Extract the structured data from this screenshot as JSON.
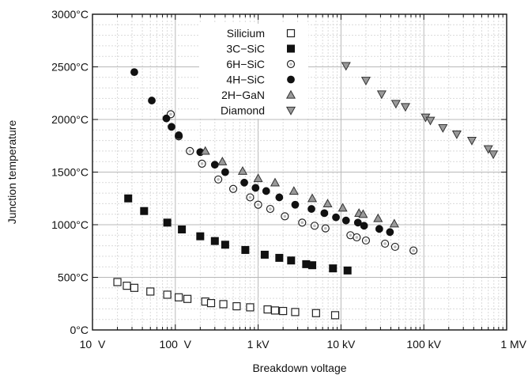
{
  "chart_data": {
    "type": "scatter",
    "xlabel": "Breakdown voltage",
    "ylabel": "Junction temperature",
    "x_scale": "log",
    "xlim": [
      10,
      1000000
    ],
    "ylim": [
      0,
      3000
    ],
    "grid": true,
    "legend_position": "top-center",
    "x_ticks": [
      {
        "value": 10,
        "label": "10  V"
      },
      {
        "value": 100,
        "label": "100  V"
      },
      {
        "value": 1000,
        "label": "1 kV"
      },
      {
        "value": 10000,
        "label": "10 kV"
      },
      {
        "value": 100000,
        "label": "100 kV"
      },
      {
        "value": 1000000,
        "label": "1 MV"
      }
    ],
    "y_ticks": [
      {
        "value": 0,
        "label": "0°C"
      },
      {
        "value": 500,
        "label": "500°C"
      },
      {
        "value": 1000,
        "label": "1000°C"
      },
      {
        "value": 1500,
        "label": "1500°C"
      },
      {
        "value": 2000,
        "label": "2000°C"
      },
      {
        "value": 2500,
        "label": "2500°C"
      },
      {
        "value": 3000,
        "label": "3000°C"
      }
    ],
    "series": [
      {
        "name": "Silicium",
        "marker": "square-open",
        "x": [
          20,
          26,
          32,
          50,
          80,
          110,
          140,
          230,
          270,
          380,
          550,
          800,
          1300,
          1600,
          2000,
          2800,
          5000,
          8500
        ],
        "y": [
          455,
          420,
          400,
          365,
          335,
          310,
          295,
          270,
          255,
          245,
          225,
          215,
          195,
          185,
          180,
          170,
          160,
          140
        ]
      },
      {
        "name": "3C−SiC",
        "marker": "square-filled",
        "x": [
          27,
          42,
          80,
          120,
          200,
          300,
          400,
          700,
          1200,
          1800,
          2500,
          3800,
          4500,
          8000,
          12000
        ],
        "y": [
          1250,
          1130,
          1020,
          955,
          890,
          845,
          810,
          760,
          715,
          685,
          660,
          625,
          615,
          585,
          565
        ]
      },
      {
        "name": "6H−SiC",
        "marker": "circle-open",
        "x": [
          88,
          110,
          150,
          210,
          330,
          500,
          800,
          1000,
          1400,
          2100,
          3400,
          4800,
          6500,
          13000,
          15500,
          20000,
          34000,
          45000,
          75000
        ],
        "y": [
          2050,
          1840,
          1700,
          1580,
          1430,
          1340,
          1260,
          1190,
          1150,
          1080,
          1020,
          990,
          965,
          900,
          880,
          850,
          820,
          790,
          755
        ]
      },
      {
        "name": "4H−SiC",
        "marker": "circle-filled",
        "x": [
          32,
          52,
          78,
          90,
          110,
          200,
          300,
          400,
          680,
          930,
          1250,
          1800,
          2800,
          4400,
          6300,
          8700,
          11500,
          16000,
          19000,
          29000,
          39000
        ],
        "y": [
          2450,
          2180,
          2010,
          1930,
          1850,
          1690,
          1570,
          1500,
          1400,
          1350,
          1320,
          1260,
          1190,
          1150,
          1110,
          1070,
          1040,
          1020,
          990,
          960,
          930
        ]
      },
      {
        "name": "2H−GaN",
        "marker": "triangle-up",
        "x": [
          230,
          370,
          650,
          1000,
          1600,
          2700,
          4500,
          6900,
          10500,
          16500,
          18500,
          28000,
          44000
        ],
        "y": [
          1700,
          1600,
          1510,
          1440,
          1400,
          1320,
          1250,
          1200,
          1160,
          1110,
          1100,
          1060,
          1010
        ]
      },
      {
        "name": "Diamond",
        "marker": "triangle-down",
        "x": [
          11500,
          20000,
          31000,
          46000,
          60000,
          105000,
          120000,
          170000,
          250000,
          380000,
          600000,
          690000
        ],
        "y": [
          2510,
          2370,
          2240,
          2150,
          2120,
          2020,
          1990,
          1920,
          1860,
          1800,
          1720,
          1670
        ]
      }
    ]
  }
}
